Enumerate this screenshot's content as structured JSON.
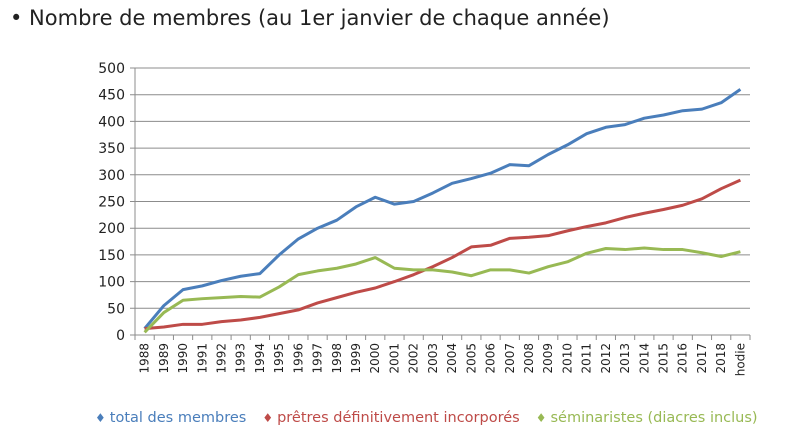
{
  "title": "• Nombre de membres (au 1er janvier de chaque année)",
  "chart_data": {
    "type": "line",
    "title": "Nombre de membres (au 1er janvier de chaque année)",
    "xlabel": "",
    "ylabel": "",
    "ylim": [
      0,
      500
    ],
    "yticks": [
      0,
      50,
      100,
      150,
      200,
      250,
      300,
      350,
      400,
      450,
      500
    ],
    "grid": true,
    "legend": "bottom",
    "categories": [
      "1988",
      "1989",
      "1990",
      "1991",
      "1992",
      "1993",
      "1994",
      "1995",
      "1996",
      "1997",
      "1998",
      "1999",
      "2000",
      "2001",
      "2002",
      "2003",
      "2004",
      "2005",
      "2006",
      "2007",
      "2008",
      "2009",
      "2010",
      "2011",
      "2012",
      "2013",
      "2014",
      "2015",
      "2016",
      "2017",
      "2018",
      "hodie"
    ],
    "series": [
      {
        "name": "total des membres",
        "color": "#4a7ebb",
        "values": [
          12,
          55,
          85,
          92,
          102,
          110,
          115,
          150,
          180,
          200,
          215,
          240,
          258,
          245,
          250,
          266,
          284,
          293,
          303,
          319,
          317,
          338,
          356,
          377,
          389,
          394,
          406,
          412,
          420,
          423,
          435,
          460
        ]
      },
      {
        "name": "prêtres définitivement incorporés",
        "color": "#be4b48",
        "values": [
          12,
          15,
          20,
          20,
          25,
          28,
          33,
          40,
          47,
          60,
          70,
          80,
          88,
          100,
          113,
          128,
          145,
          165,
          168,
          181,
          183,
          186,
          195,
          203,
          210,
          220,
          228,
          235,
          243,
          255,
          274,
          290
        ]
      },
      {
        "name": "séminaristes (diacres inclus)",
        "color": "#98b954",
        "values": [
          5,
          42,
          65,
          68,
          70,
          72,
          71,
          90,
          113,
          120,
          125,
          133,
          145,
          125,
          122,
          122,
          118,
          111,
          122,
          122,
          116,
          128,
          137,
          153,
          162,
          160,
          163,
          160,
          160,
          154,
          147,
          156
        ]
      }
    ]
  }
}
